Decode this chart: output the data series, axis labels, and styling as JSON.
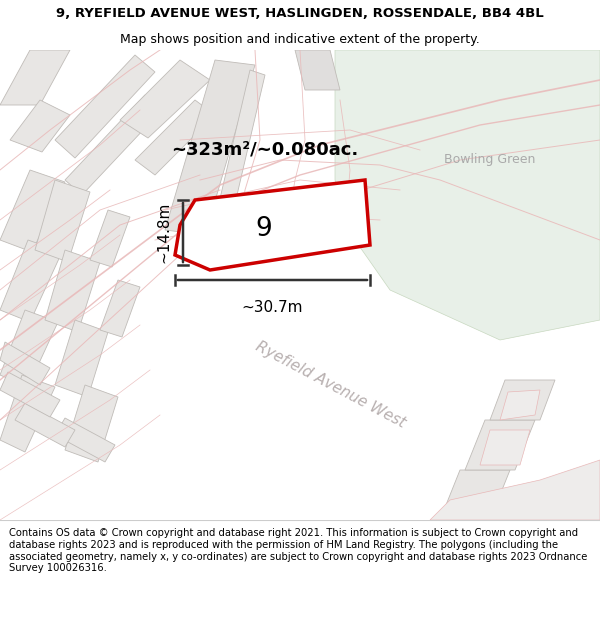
{
  "title_line1": "9, RYEFIELD AVENUE WEST, HASLINGDEN, ROSSENDALE, BB4 4BL",
  "title_line2": "Map shows position and indicative extent of the property.",
  "footer_text": "Contains OS data © Crown copyright and database right 2021. This information is subject to Crown copyright and database rights 2023 and is reproduced with the permission of HM Land Registry. The polygons (including the associated geometry, namely x, y co-ordinates) are subject to Crown copyright and database rights 2023 Ordnance Survey 100026316.",
  "map_bg": "#f7f6f4",
  "bowling_green_color": "#e8f0e8",
  "highlight_fill": "#ffffff",
  "highlight_edge": "#cc0000",
  "road_label": "Ryefield Avenue West",
  "bowling_green_label": "Bowling Green",
  "area_label": "~323m²/~0.080ac.",
  "number_label": "9",
  "dim_width": "~30.7m",
  "dim_height": "~14.8m",
  "building_light": "#e8e6e4",
  "building_edge": "#c0bcb8",
  "road_line_color": "#e8b8b8",
  "road_fill": "#ede8e6"
}
